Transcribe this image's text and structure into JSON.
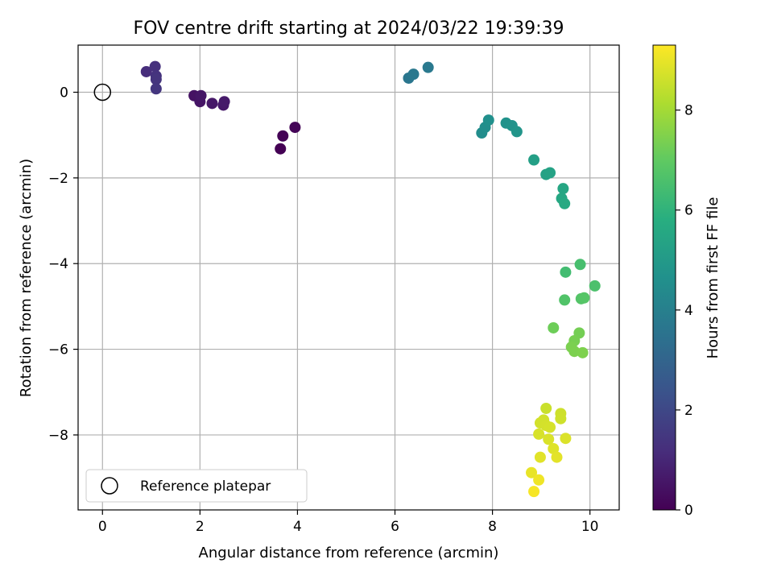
{
  "chart_data": {
    "type": "scatter",
    "title": "FOV centre drift starting at 2024/03/22 19:39:39",
    "xlabel": "Angular distance from reference (arcmin)",
    "ylabel": "Rotation from reference (arcmin)",
    "xlim": [
      -0.5,
      10.6
    ],
    "ylim": [
      -9.75,
      1.1
    ],
    "xticks": [
      "0",
      "2",
      "4",
      "6",
      "8",
      "10"
    ],
    "yticks": [
      "0",
      "−2",
      "−4",
      "−6",
      "−8"
    ],
    "grid": true,
    "colormap": "viridis",
    "colorbar": {
      "label": "Hours from first FF file",
      "range": [
        0,
        9.3
      ],
      "ticks": [
        "0",
        "2",
        "4",
        "6",
        "8"
      ]
    },
    "legend": {
      "position": "lower-left",
      "entries": [
        "Reference platepar"
      ]
    },
    "reference": {
      "x": 0,
      "y": 0
    },
    "points": [
      {
        "x": 3.65,
        "y": -1.32,
        "h": 0.0
      },
      {
        "x": 3.7,
        "y": -1.02,
        "h": 0.05
      },
      {
        "x": 3.95,
        "y": -0.82,
        "h": 0.1
      },
      {
        "x": 1.88,
        "y": -0.08,
        "h": 0.45
      },
      {
        "x": 2.0,
        "y": -0.22,
        "h": 0.5
      },
      {
        "x": 2.02,
        "y": -0.08,
        "h": 0.55
      },
      {
        "x": 2.25,
        "y": -0.26,
        "h": 0.6
      },
      {
        "x": 2.48,
        "y": -0.3,
        "h": 0.62
      },
      {
        "x": 2.5,
        "y": -0.22,
        "h": 0.65
      },
      {
        "x": 0.9,
        "y": 0.48,
        "h": 1.2
      },
      {
        "x": 1.08,
        "y": 0.6,
        "h": 1.3
      },
      {
        "x": 1.1,
        "y": 0.38,
        "h": 1.35
      },
      {
        "x": 1.1,
        "y": 0.3,
        "h": 1.4
      },
      {
        "x": 1.1,
        "y": 0.08,
        "h": 1.45
      },
      {
        "x": 6.28,
        "y": 0.33,
        "h": 3.65
      },
      {
        "x": 6.38,
        "y": 0.42,
        "h": 3.7
      },
      {
        "x": 6.68,
        "y": 0.58,
        "h": 3.75
      },
      {
        "x": 7.78,
        "y": -0.95,
        "h": 4.5
      },
      {
        "x": 7.85,
        "y": -0.82,
        "h": 4.55
      },
      {
        "x": 7.92,
        "y": -0.65,
        "h": 4.6
      },
      {
        "x": 8.28,
        "y": -0.72,
        "h": 4.7
      },
      {
        "x": 8.4,
        "y": -0.78,
        "h": 4.75
      },
      {
        "x": 8.5,
        "y": -0.92,
        "h": 4.8
      },
      {
        "x": 8.85,
        "y": -1.58,
        "h": 5.2
      },
      {
        "x": 9.1,
        "y": -1.92,
        "h": 5.3
      },
      {
        "x": 9.18,
        "y": -1.88,
        "h": 5.35
      },
      {
        "x": 9.45,
        "y": -2.25,
        "h": 5.5
      },
      {
        "x": 9.42,
        "y": -2.48,
        "h": 5.55
      },
      {
        "x": 9.48,
        "y": -2.6,
        "h": 5.6
      },
      {
        "x": 9.5,
        "y": -4.2,
        "h": 6.4
      },
      {
        "x": 9.8,
        "y": -4.02,
        "h": 6.5
      },
      {
        "x": 10.1,
        "y": -4.52,
        "h": 6.6
      },
      {
        "x": 9.48,
        "y": -4.85,
        "h": 6.7
      },
      {
        "x": 9.82,
        "y": -4.82,
        "h": 6.75
      },
      {
        "x": 9.88,
        "y": -4.8,
        "h": 6.8
      },
      {
        "x": 9.25,
        "y": -5.5,
        "h": 7.2
      },
      {
        "x": 9.78,
        "y": -5.62,
        "h": 7.3
      },
      {
        "x": 9.68,
        "y": -5.8,
        "h": 7.35
      },
      {
        "x": 9.62,
        "y": -5.95,
        "h": 7.4
      },
      {
        "x": 9.68,
        "y": -6.05,
        "h": 7.42
      },
      {
        "x": 9.85,
        "y": -6.08,
        "h": 7.45
      },
      {
        "x": 9.1,
        "y": -7.38,
        "h": 8.55
      },
      {
        "x": 9.4,
        "y": -7.5,
        "h": 8.6
      },
      {
        "x": 9.4,
        "y": -7.62,
        "h": 8.62
      },
      {
        "x": 9.05,
        "y": -7.65,
        "h": 8.65
      },
      {
        "x": 8.98,
        "y": -7.72,
        "h": 8.68
      },
      {
        "x": 9.1,
        "y": -7.78,
        "h": 8.7
      },
      {
        "x": 9.18,
        "y": -7.82,
        "h": 8.72
      },
      {
        "x": 8.95,
        "y": -7.98,
        "h": 8.75
      },
      {
        "x": 9.15,
        "y": -8.1,
        "h": 8.78
      },
      {
        "x": 9.5,
        "y": -8.08,
        "h": 8.8
      },
      {
        "x": 9.25,
        "y": -8.32,
        "h": 8.85
      },
      {
        "x": 8.98,
        "y": -8.52,
        "h": 8.9
      },
      {
        "x": 9.32,
        "y": -8.52,
        "h": 8.92
      },
      {
        "x": 8.8,
        "y": -8.88,
        "h": 9.0
      },
      {
        "x": 8.95,
        "y": -9.05,
        "h": 9.1
      },
      {
        "x": 8.85,
        "y": -9.32,
        "h": 9.2
      }
    ]
  }
}
